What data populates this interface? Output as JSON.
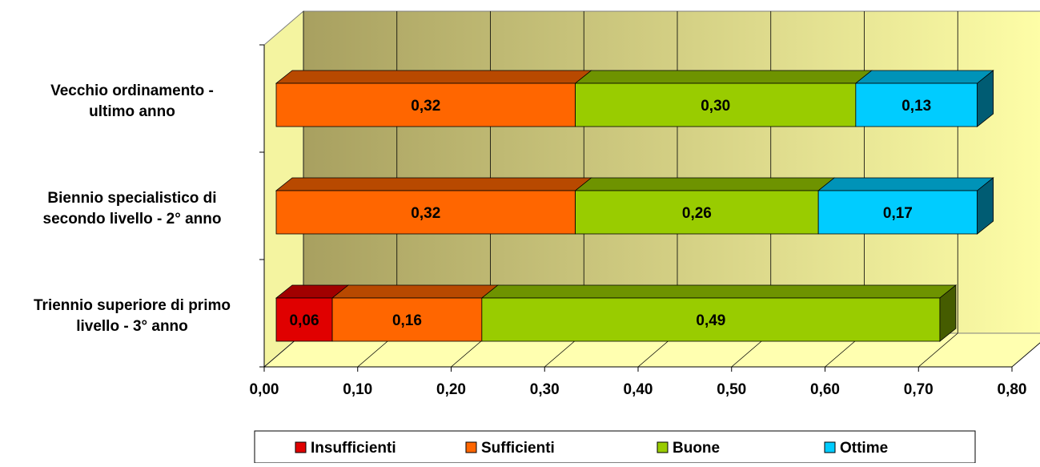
{
  "chart_data": {
    "type": "bar",
    "orientation": "horizontal",
    "stacked": true,
    "three_d": true,
    "categories": [
      [
        "Vecchio ordinamento -",
        "ultimo anno"
      ],
      [
        "Biennio specialistico di",
        "secondo livello - 2° anno"
      ],
      [
        "Triennio superiore di primo",
        "livello - 3° anno"
      ]
    ],
    "series": [
      {
        "name": "Insufficienti",
        "color": "#e00000",
        "values": [
          null,
          null,
          0.06
        ],
        "labels": [
          "",
          "",
          "0,06"
        ]
      },
      {
        "name": "Sufficienti",
        "color": "#ff6600",
        "values": [
          0.32,
          0.32,
          0.16
        ],
        "labels": [
          "0,32",
          "0,32",
          "0,16"
        ]
      },
      {
        "name": "Buone",
        "color": "#99cc00",
        "values": [
          0.3,
          0.26,
          0.49
        ],
        "labels": [
          "0,30",
          "0,26",
          "0,49"
        ]
      },
      {
        "name": "Ottime",
        "color": "#00ccff",
        "values": [
          0.13,
          0.17,
          null
        ],
        "labels": [
          "0,13",
          "0,17",
          ""
        ]
      }
    ],
    "xlim": [
      0,
      0.8
    ],
    "x_ticks": [
      "0,00",
      "0,10",
      "0,20",
      "0,30",
      "0,40",
      "0,50",
      "0,60",
      "0,70",
      "0,80"
    ],
    "grid": true,
    "legend": "bottom",
    "wall_color_dark": "#a8a060",
    "wall_color_light": "#ffffa8"
  }
}
